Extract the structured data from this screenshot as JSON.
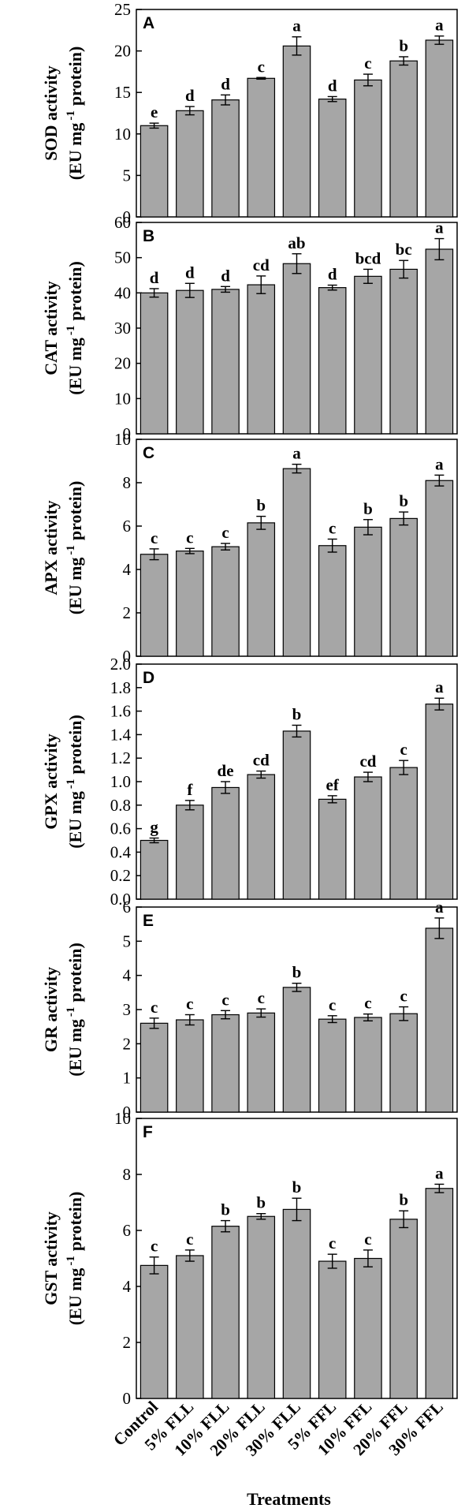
{
  "chart_data": {
    "type": "bar",
    "categories": [
      "Control",
      "5% FLL",
      "10% FLL",
      "20% FLL",
      "30% FLL",
      "5% FFL",
      "10% FFL",
      "20% FFL",
      "30% FFL"
    ],
    "xlabel": "Treatments",
    "panels": [
      {
        "letter": "A",
        "ylabel_line1": "SOD activity",
        "ylabel_line2": "(EU mg",
        "ylabel_sup": "-1",
        "ylabel_tail": "protein)",
        "ylim": [
          0,
          25
        ],
        "yticks": [
          0,
          5,
          10,
          15,
          20,
          25
        ],
        "tick_labels": [
          "0",
          "5",
          "10",
          "15",
          "20",
          "25"
        ],
        "values": [
          11.0,
          12.8,
          14.1,
          16.7,
          20.6,
          14.2,
          16.5,
          18.8,
          21.3
        ],
        "errors": [
          0.3,
          0.5,
          0.6,
          0.1,
          1.1,
          0.3,
          0.7,
          0.5,
          0.5
        ],
        "letters": [
          "e",
          "d",
          "d",
          "c",
          "a",
          "d",
          "c",
          "b",
          "a"
        ]
      },
      {
        "letter": "B",
        "ylabel_line1": "CAT activity",
        "ylabel_line2": "(EU mg",
        "ylabel_sup": "-1",
        "ylabel_tail": "protein)",
        "ylim": [
          0,
          60
        ],
        "yticks": [
          0,
          10,
          20,
          30,
          40,
          50,
          60
        ],
        "tick_labels": [
          "0",
          "10",
          "20",
          "30",
          "40",
          "50",
          "60"
        ],
        "values": [
          40.0,
          40.7,
          41.0,
          42.3,
          48.3,
          41.5,
          44.7,
          46.7,
          52.4
        ],
        "errors": [
          1.2,
          2.0,
          0.8,
          2.5,
          2.8,
          0.7,
          2.0,
          2.5,
          3.0
        ],
        "letters": [
          "d",
          "d",
          "d",
          "cd",
          "ab",
          "d",
          "bcd",
          "bc",
          "a"
        ]
      },
      {
        "letter": "C",
        "ylabel_line1": "APX activity",
        "ylabel_line2": "(EU mg",
        "ylabel_sup": "-1",
        "ylabel_tail": "protein)",
        "ylim": [
          0,
          10
        ],
        "yticks": [
          0,
          2,
          4,
          6,
          8,
          10
        ],
        "tick_labels": [
          "0",
          "2",
          "4",
          "6",
          "8",
          "10"
        ],
        "values": [
          4.7,
          4.85,
          5.05,
          6.15,
          8.65,
          5.1,
          5.95,
          6.35,
          8.1
        ],
        "errors": [
          0.25,
          0.12,
          0.15,
          0.3,
          0.2,
          0.3,
          0.35,
          0.3,
          0.25
        ],
        "letters": [
          "c",
          "c",
          "c",
          "b",
          "a",
          "c",
          "b",
          "b",
          "a"
        ]
      },
      {
        "letter": "D",
        "ylabel_line1": "GPX activity",
        "ylabel_line2": "(EU mg",
        "ylabel_sup": "-1",
        "ylabel_tail": "protein)",
        "ylim": [
          0,
          2.0
        ],
        "yticks": [
          0,
          0.2,
          0.4,
          0.6,
          0.8,
          1.0,
          1.2,
          1.4,
          1.6,
          1.8,
          2.0
        ],
        "tick_labels": [
          "0.0",
          "0.2",
          "0.4",
          "0.6",
          "0.8",
          "1.0",
          "1.2",
          "1.4",
          "1.6",
          "1.8",
          "2.0"
        ],
        "values": [
          0.5,
          0.8,
          0.95,
          1.06,
          1.43,
          0.85,
          1.04,
          1.12,
          1.66
        ],
        "errors": [
          0.02,
          0.04,
          0.05,
          0.03,
          0.05,
          0.03,
          0.04,
          0.06,
          0.05
        ],
        "letters": [
          "g",
          "f",
          "de",
          "cd",
          "b",
          "ef",
          "cd",
          "c",
          "a"
        ]
      },
      {
        "letter": "E",
        "ylabel_line1": "GR activity",
        "ylabel_line2": "(EU mg",
        "ylabel_sup": "-1",
        "ylabel_tail": "protein)",
        "ylim": [
          0,
          6
        ],
        "yticks": [
          0,
          1,
          2,
          3,
          4,
          5,
          6
        ],
        "tick_labels": [
          "0",
          "1",
          "2",
          "3",
          "4",
          "5",
          "6"
        ],
        "values": [
          2.6,
          2.7,
          2.85,
          2.9,
          3.65,
          2.72,
          2.77,
          2.88,
          5.38
        ],
        "errors": [
          0.15,
          0.15,
          0.12,
          0.12,
          0.12,
          0.1,
          0.1,
          0.2,
          0.3
        ],
        "letters": [
          "c",
          "c",
          "c",
          "c",
          "b",
          "c",
          "c",
          "c",
          "a"
        ]
      },
      {
        "letter": "F",
        "ylabel_line1": "GST activity",
        "ylabel_line2": "(EU mg",
        "ylabel_sup": "-1",
        "ylabel_tail": "protein)",
        "ylim": [
          0,
          10
        ],
        "yticks": [
          0,
          2,
          4,
          6,
          8,
          10
        ],
        "tick_labels": [
          "0",
          "2",
          "4",
          "6",
          "8",
          "10"
        ],
        "values": [
          4.75,
          5.1,
          6.15,
          6.5,
          6.75,
          4.9,
          5.0,
          6.4,
          7.5
        ],
        "errors": [
          0.3,
          0.2,
          0.2,
          0.1,
          0.4,
          0.25,
          0.3,
          0.3,
          0.15
        ],
        "letters": [
          "c",
          "c",
          "b",
          "b",
          "b",
          "c",
          "c",
          "b",
          "a"
        ]
      }
    ],
    "bar_color": "#a6a6a6",
    "grid": false
  }
}
